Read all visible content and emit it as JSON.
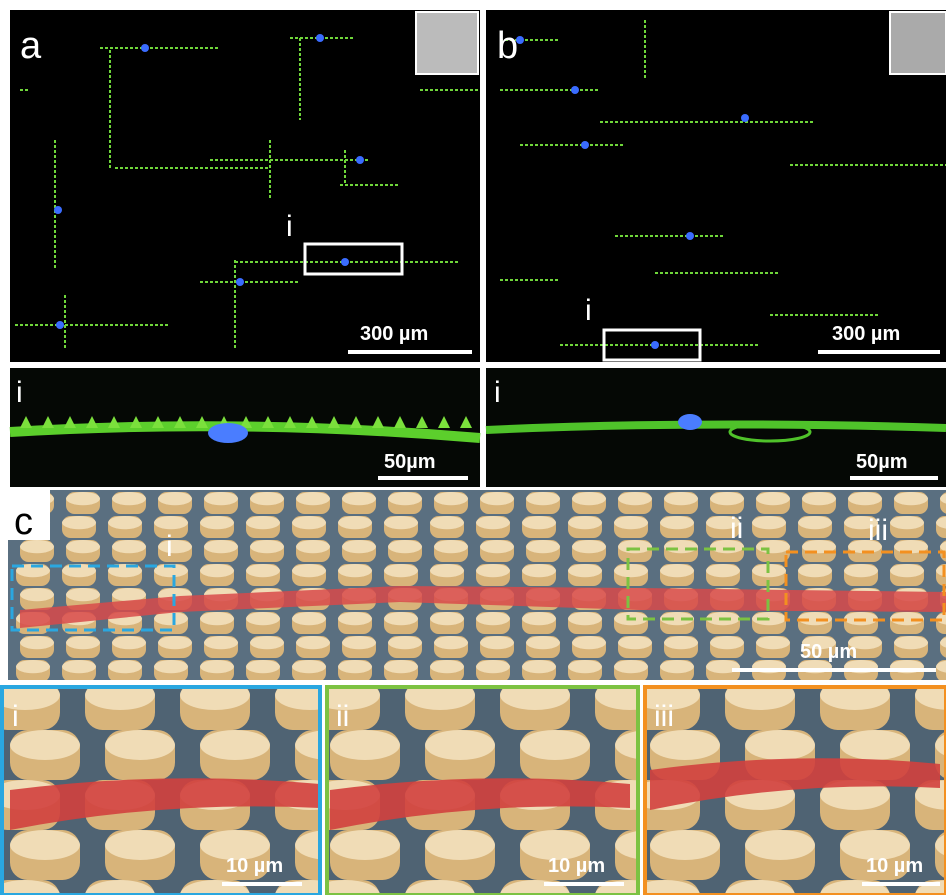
{
  "panels": {
    "a": {
      "label": "a",
      "inset_label": "i",
      "scale_bar": "300 µm"
    },
    "b": {
      "label": "b",
      "inset_label": "i",
      "scale_bar": "300 µm"
    },
    "a_zoom": {
      "label": "i",
      "scale_bar": "50µm"
    },
    "b_zoom": {
      "label": "i",
      "scale_bar": "50µm"
    },
    "c": {
      "label": "c",
      "regions": [
        "i",
        "ii",
        "iii"
      ],
      "scale_bar": "50 µm"
    },
    "details": [
      {
        "label": "i",
        "scale_bar": "10 µm"
      },
      {
        "label": "ii",
        "scale_bar": "10 µm"
      },
      {
        "label": "iii",
        "scale_bar": "10 µm"
      }
    ]
  }
}
